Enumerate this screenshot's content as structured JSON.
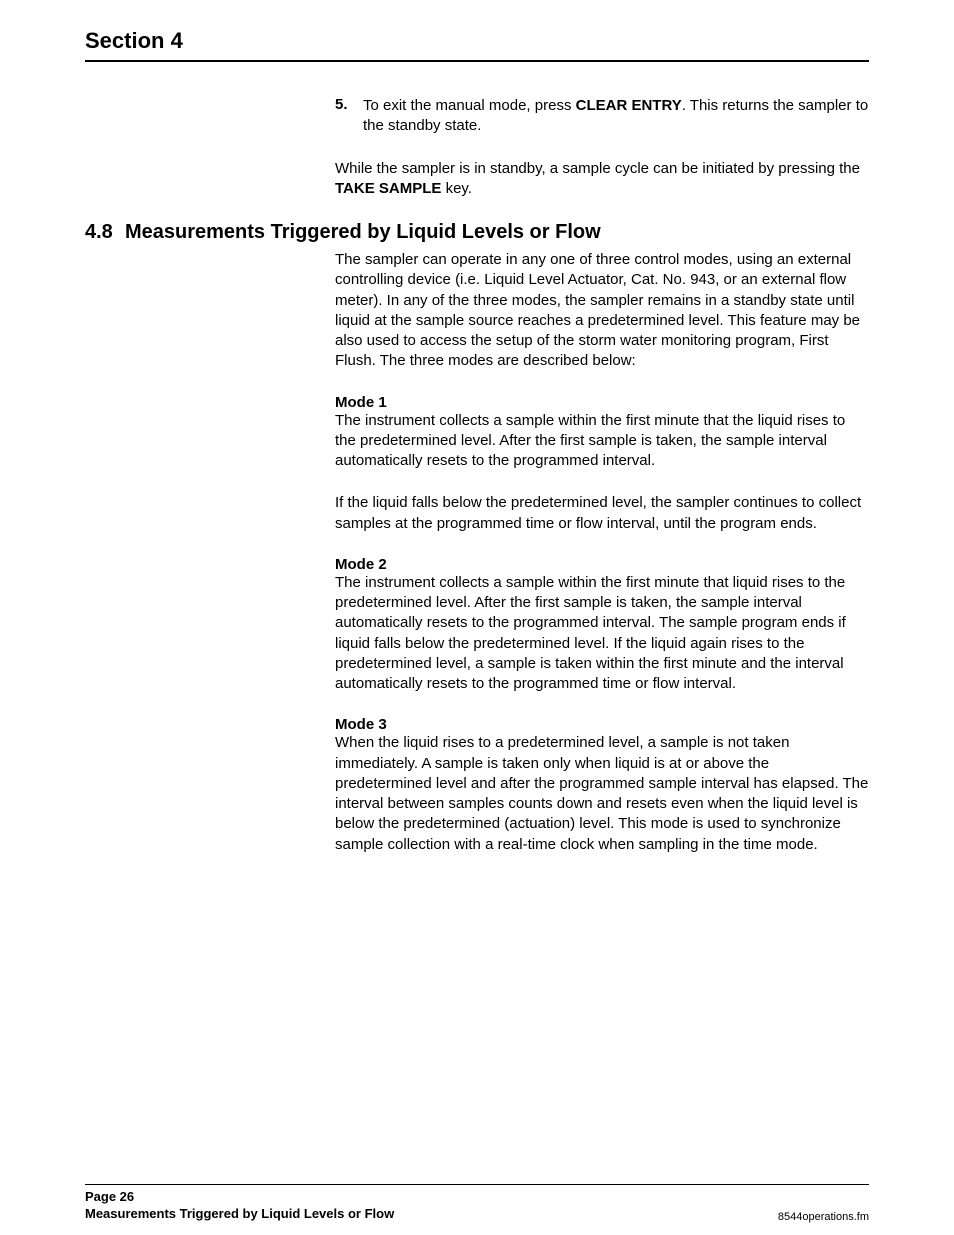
{
  "header": {
    "section_title": "Section 4"
  },
  "step5": {
    "num": "5.",
    "text_before": "To exit the manual mode, press ",
    "bold1": "CLEAR ENTRY",
    "text_after": ". This returns the sampler to the standby state."
  },
  "standby_para": {
    "text_before": "While the sampler is in standby, a sample cycle can be initiated by pressing the ",
    "bold1": "TAKE SAMPLE",
    "text_after": " key."
  },
  "subsection": {
    "num": "4.8",
    "title": "Measurements Triggered by Liquid Levels or Flow",
    "intro": "The sampler can operate in any one of three control modes, using an external controlling device (i.e. Liquid Level Actuator, Cat. No. 943, or an external flow meter). In any of the three modes, the sampler remains in a standby state until liquid at the sample source reaches a predetermined level. This feature may be also used to access the setup of the storm water monitoring program, First Flush. The three modes are described below:"
  },
  "mode1": {
    "label": "Mode 1",
    "p1": "The instrument collects a sample within the first minute that the liquid rises to the predetermined level. After the first sample is taken, the sample interval automatically resets to the programmed interval.",
    "p2": "If the liquid falls below the predetermined level, the sampler continues to collect samples at the programmed time or flow interval, until the program ends."
  },
  "mode2": {
    "label": "Mode 2",
    "p1": "The instrument collects a sample within the first minute that liquid rises to the predetermined level. After the first sample is taken, the sample interval automatically resets to the programmed interval. The sample program ends if liquid falls below the predetermined level. If the liquid again rises to the predetermined level, a sample is taken within the first minute and the interval automatically resets to the programmed time or flow interval."
  },
  "mode3": {
    "label": "Mode 3",
    "p1": "When the liquid rises to a predetermined level, a sample is not taken immediately. A sample is taken only when liquid is at or above the predetermined level and after the programmed sample interval has elapsed. The interval between samples counts down and resets even when the liquid level is below the predetermined (actuation) level. This mode is used to synchronize sample collection with a real-time clock when sampling in the time mode."
  },
  "footer": {
    "page_label": "Page 26",
    "section_label": "Measurements Triggered by Liquid Levels or Flow",
    "doc_ref": "8544operations.fm"
  }
}
